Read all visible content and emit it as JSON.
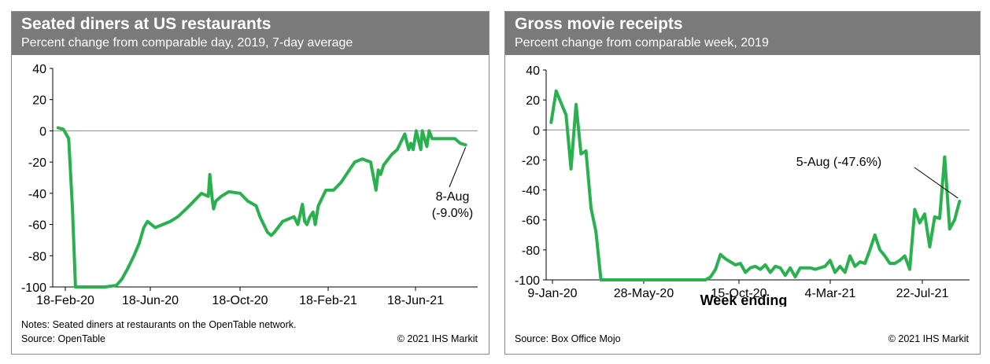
{
  "chart_data": [
    {
      "type": "line",
      "title": "Seated diners at US restaurants",
      "subtitle": "Percent change from comparable day, 2019, 7-day average",
      "xlabel": "",
      "ylabel": "",
      "ylim": [
        -100,
        40
      ],
      "yticks": [
        40,
        20,
        0,
        -20,
        -40,
        -60,
        -80,
        -100
      ],
      "x_ticks": [
        "18-Feb-20",
        "18-Jun-20",
        "18-Oct-20",
        "18-Feb-21",
        "18-Jun-21"
      ],
      "x": [
        "2020-02-18",
        "2020-02-25",
        "2020-03-03",
        "2020-03-08",
        "2020-03-12",
        "2020-03-15",
        "2020-03-18",
        "2020-03-22",
        "2020-03-26",
        "2020-04-05",
        "2020-04-20",
        "2020-05-05",
        "2020-05-12",
        "2020-05-20",
        "2020-05-28",
        "2020-06-04",
        "2020-06-10",
        "2020-06-15",
        "2020-06-20",
        "2020-06-25",
        "2020-07-05",
        "2020-07-15",
        "2020-07-25",
        "2020-08-05",
        "2020-08-15",
        "2020-08-25",
        "2020-09-03",
        "2020-09-05",
        "2020-09-08",
        "2020-09-10",
        "2020-09-13",
        "2020-09-20",
        "2020-09-30",
        "2020-10-15",
        "2020-10-25",
        "2020-11-05",
        "2020-11-10",
        "2020-11-15",
        "2020-11-20",
        "2020-11-25",
        "2020-11-29",
        "2020-12-10",
        "2020-12-25",
        "2020-12-30",
        "2021-01-05",
        "2021-01-08",
        "2021-01-11",
        "2021-01-15",
        "2021-01-19",
        "2021-01-22",
        "2021-01-26",
        "2021-02-05",
        "2021-02-15",
        "2021-02-25",
        "2021-03-08",
        "2021-03-15",
        "2021-03-25",
        "2021-04-05",
        "2021-04-10",
        "2021-04-12",
        "2021-04-15",
        "2021-04-18",
        "2021-04-22",
        "2021-05-03",
        "2021-05-10",
        "2021-05-20",
        "2021-05-25",
        "2021-05-28",
        "2021-05-31",
        "2021-06-04",
        "2021-06-10",
        "2021-06-12",
        "2021-06-15",
        "2021-06-18",
        "2021-06-21",
        "2021-06-25",
        "2021-07-05",
        "2021-07-15",
        "2021-07-25",
        "2021-08-01",
        "2021-08-08"
      ],
      "series": [
        {
          "name": "",
          "color": "#2bb04f",
          "values": [
            2,
            1,
            -5,
            -50,
            -100,
            -100,
            -100,
            -100,
            -100,
            -100,
            -100,
            -99,
            -95,
            -88,
            -80,
            -72,
            -62,
            -58,
            -60,
            -62,
            -60,
            -58,
            -55,
            -50,
            -45,
            -40,
            -42,
            -28,
            -43,
            -50,
            -45,
            -42,
            -39,
            -40,
            -45,
            -48,
            -55,
            -60,
            -65,
            -67,
            -65,
            -58,
            -55,
            -60,
            -47,
            -58,
            -60,
            -55,
            -52,
            -60,
            -48,
            -38,
            -38,
            -33,
            -25,
            -20,
            -18,
            -20,
            -33,
            -38,
            -25,
            -28,
            -22,
            -15,
            -12,
            -2,
            -12,
            -8,
            -12,
            0,
            -12,
            0,
            -5,
            -10,
            0,
            -5,
            -5,
            -5,
            -5,
            -8,
            -9
          ]
        }
      ],
      "annotation": {
        "date_label": "8-Aug",
        "value_label": "(-9.0%)"
      },
      "notes": "Notes: Seated diners at restaurants on the OpenTable network.",
      "source": "Source: OpenTable",
      "copyright": "© 2021 IHS Markit"
    },
    {
      "type": "line",
      "title": "Gross movie receipts",
      "subtitle": "Percent change from comparable week, 2019",
      "xlabel": "Week ending",
      "ylabel": "",
      "ylim": [
        -100,
        40
      ],
      "yticks": [
        40,
        20,
        0,
        -20,
        -40,
        -60,
        -80,
        -100
      ],
      "x_ticks": [
        "9-Jan-20",
        "28-May-20",
        "15-Oct-20",
        "4-Mar-21",
        "22-Jul-21"
      ],
      "x": [
        "2020-01-09",
        "2020-01-16",
        "2020-01-23",
        "2020-01-30",
        "2020-02-06",
        "2020-02-13",
        "2020-02-20",
        "2020-02-27",
        "2020-03-05",
        "2020-03-12",
        "2020-03-19",
        "2020-03-26",
        "2020-04-30",
        "2020-06-04",
        "2020-07-09",
        "2020-08-13",
        "2020-08-20",
        "2020-08-27",
        "2020-09-03",
        "2020-09-10",
        "2020-09-17",
        "2020-09-24",
        "2020-10-01",
        "2020-10-08",
        "2020-10-15",
        "2020-10-22",
        "2020-10-29",
        "2020-11-05",
        "2020-11-12",
        "2020-11-19",
        "2020-11-26",
        "2020-12-03",
        "2020-12-10",
        "2020-12-17",
        "2020-12-24",
        "2020-12-31",
        "2021-01-07",
        "2021-01-14",
        "2021-01-21",
        "2021-01-28",
        "2021-02-04",
        "2021-02-11",
        "2021-02-18",
        "2021-02-25",
        "2021-03-04",
        "2021-03-11",
        "2021-03-18",
        "2021-03-25",
        "2021-04-01",
        "2021-04-08",
        "2021-04-15",
        "2021-04-22",
        "2021-04-29",
        "2021-05-06",
        "2021-05-13",
        "2021-05-20",
        "2021-05-27",
        "2021-06-03",
        "2021-06-10",
        "2021-06-17",
        "2021-06-24",
        "2021-07-01",
        "2021-07-08",
        "2021-07-15",
        "2021-07-22",
        "2021-07-29",
        "2021-08-05"
      ],
      "series": [
        {
          "name": "",
          "color": "#2bb04f",
          "values": [
            5,
            26,
            18,
            10,
            -26,
            17,
            -16,
            -14,
            -52,
            -68,
            -100,
            -100,
            -100,
            -100,
            -100,
            -100,
            -98,
            -93,
            -83,
            -86,
            -88,
            -90,
            -89,
            -95,
            -92,
            -91,
            -93,
            -90,
            -95,
            -91,
            -92,
            -97,
            -92,
            -98,
            -92,
            -92,
            -92,
            -93,
            -92,
            -91,
            -87,
            -95,
            -91,
            -95,
            -84,
            -91,
            -88,
            -89,
            -80,
            -70,
            -80,
            -84,
            -89,
            -89,
            -87,
            -84,
            -93,
            -53,
            -62,
            -56,
            -78,
            -58,
            -59,
            -18,
            -66,
            -60,
            -47.6
          ]
        }
      ],
      "annotation": {
        "label": "5-Aug (-47.6%)"
      },
      "source": "Source: Box Office Mojo",
      "copyright": "© 2021 IHS Markit"
    }
  ]
}
